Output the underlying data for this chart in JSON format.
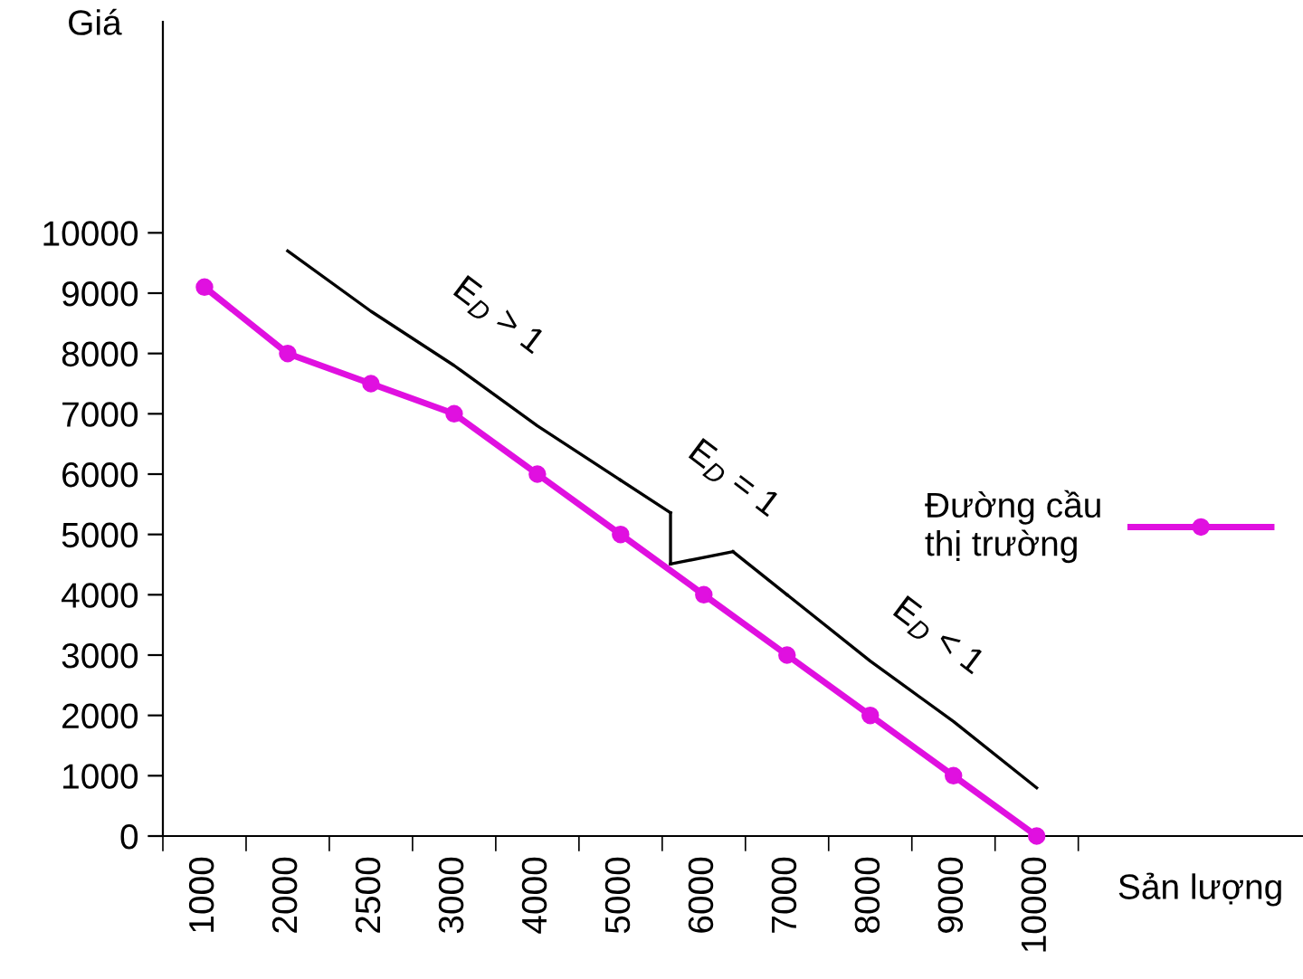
{
  "chart_data": {
    "type": "line",
    "ylabel": "Giá",
    "xlabel": "Sản lượng",
    "categories": [
      "1000",
      "2000",
      "2500",
      "3000",
      "4000",
      "5000",
      "6000",
      "7000",
      "8000",
      "9000",
      "10000"
    ],
    "series": [
      {
        "name": "Đường cầu\nthị trường",
        "color": "#e010e0",
        "values": [
          9100,
          8000,
          7500,
          7000,
          6000,
          5000,
          4000,
          3000,
          2000,
          1000,
          0
        ]
      },
      {
        "type": "line",
        "color": "#000000",
        "marker": "none",
        "values": [
          null,
          9700,
          8700,
          7800,
          6800,
          5900,
          null,
          null,
          null,
          null,
          null
        ]
      },
      {
        "type": "line",
        "color": "#000000",
        "marker": "none",
        "values": [
          null,
          null,
          null,
          null,
          null,
          null,
          null,
          4000,
          2900,
          1900,
          800
        ]
      }
    ],
    "ylim": [
      0,
      13500
    ],
    "yticks": [
      0,
      1000,
      2000,
      3000,
      4000,
      5000,
      6000,
      7000,
      8000,
      9000,
      10000
    ],
    "marker": "circle",
    "line_style": "solid",
    "grid": false,
    "legend": "right",
    "annotations": [
      "E$_{D}$ > 1",
      "E$_{D}$ = 1",
      "E$_{D}$ < 1"
    ]
  }
}
